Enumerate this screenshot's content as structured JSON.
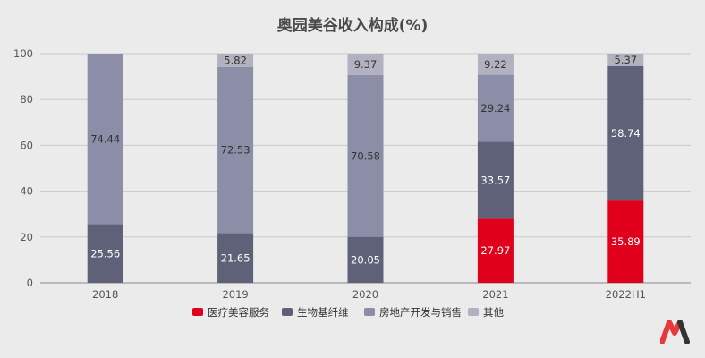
{
  "chart_data": {
    "type": "bar",
    "stacked": true,
    "title": "奥园美谷收入构成(%)",
    "categories": [
      "2018",
      "2019",
      "2020",
      "2021",
      "2022H1"
    ],
    "ylim": [
      0,
      100
    ],
    "yticks": [
      0,
      20,
      40,
      60,
      80,
      100
    ],
    "grid": true,
    "legend_position": "bottom",
    "series": [
      {
        "name": "医疗美容服务",
        "color": "#e0001b",
        "label_color": "#ffffff",
        "values": [
          null,
          null,
          null,
          27.97,
          35.89
        ]
      },
      {
        "name": "生物基纤维",
        "color": "#5f6179",
        "label_color": "#ffffff",
        "values": [
          25.56,
          21.65,
          20.05,
          33.57,
          58.74
        ]
      },
      {
        "name": "房地产开发与销售",
        "color": "#8b8ea6",
        "label_color": "#333333",
        "values": [
          74.44,
          72.53,
          70.58,
          29.24,
          null
        ]
      },
      {
        "name": "其他",
        "color": "#b1b1bf",
        "label_color": "#333333",
        "values": [
          null,
          5.82,
          9.37,
          9.22,
          5.37
        ]
      }
    ]
  }
}
